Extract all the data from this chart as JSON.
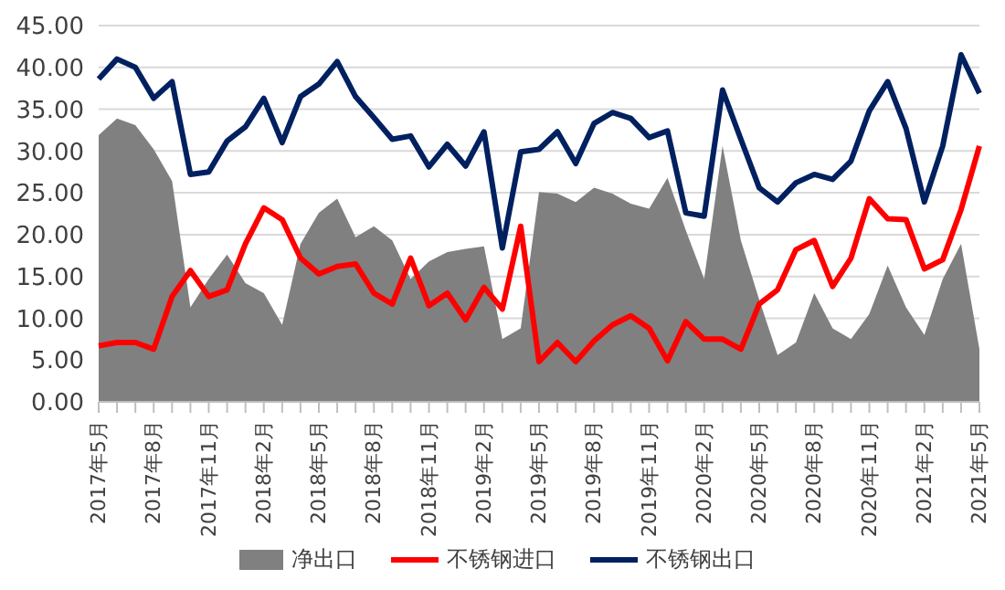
{
  "chart_data": {
    "type": "line",
    "categories": [
      "2017年5月",
      null,
      null,
      "2017年8月",
      null,
      null,
      "2017年11月",
      null,
      null,
      "2018年2月",
      null,
      null,
      "2018年5月",
      null,
      null,
      "2018年8月",
      null,
      null,
      "2018年11月",
      null,
      null,
      "2019年2月",
      null,
      null,
      "2019年5月",
      null,
      null,
      "2019年8月",
      null,
      null,
      "2019年11月",
      null,
      null,
      "2020年2月",
      null,
      null,
      "2020年5月",
      null,
      null,
      "2020年8月",
      null,
      null,
      "2020年11月",
      null,
      null,
      "2021年2月",
      null,
      null,
      "2021年5月"
    ],
    "series": [
      {
        "name": "净出口",
        "type": "area",
        "color": "#808080",
        "values": [
          31.9,
          33.9,
          33.1,
          30.2,
          26.4,
          11.3,
          14.7,
          17.6,
          14.2,
          13,
          9.2,
          18.9,
          22.6,
          24.3,
          19.7,
          21,
          19.3,
          14.7,
          16.8,
          17.9,
          18.3,
          18.6,
          7.5,
          8.8,
          25.1,
          24.9,
          23.9,
          25.6,
          24.9,
          23.7,
          23.1,
          26.8,
          20.5,
          14.7,
          30.6,
          19.3,
          12.2,
          5.6,
          7.1,
          13,
          8.8,
          7.5,
          10.5,
          16.3,
          11.3,
          8,
          14.7,
          18.9,
          6.3
        ]
      },
      {
        "name": "不锈钢进口",
        "color": "#ff0000",
        "values": [
          6.7,
          7.1,
          7.1,
          6.3,
          12.6,
          15.7,
          12.6,
          13.4,
          18.9,
          23.2,
          21.8,
          17.2,
          15.3,
          16.2,
          16.5,
          13,
          11.7,
          17.2,
          11.5,
          13,
          9.8,
          13.7,
          11.1,
          21,
          4.8,
          7.1,
          4.8,
          7.3,
          9.2,
          10.3,
          8.8,
          4.9,
          9.6,
          7.5,
          7.5,
          6.3,
          11.7,
          13.4,
          18.2,
          19.3,
          13.8,
          17.2,
          24.3,
          21.9,
          21.8,
          15.9,
          17,
          23,
          30.6
        ]
      },
      {
        "name": "不锈钢出口",
        "color": "#002060",
        "values": [
          38.6,
          41,
          40,
          36.3,
          38.3,
          27.2,
          27.5,
          31.2,
          32.9,
          36.3,
          31,
          36.5,
          38,
          40.7,
          36.5,
          34,
          31.4,
          31.8,
          28.1,
          30.8,
          28.2,
          32.3,
          18.4,
          29.9,
          30.2,
          32.3,
          28.5,
          33.3,
          34.6,
          33.9,
          31.6,
          32.4,
          22.6,
          22.2,
          37.3,
          31.4,
          25.6,
          23.9,
          26.2,
          27.2,
          26.6,
          28.8,
          34.8,
          38.3,
          32.7,
          23.9,
          30.6,
          41.5,
          36.9
        ]
      }
    ],
    "ylim": [
      0,
      45
    ],
    "yticks": [
      {
        "value": 0,
        "label": "0.00"
      },
      {
        "value": 5,
        "label": "5.00"
      },
      {
        "value": 10,
        "label": "10.00"
      },
      {
        "value": 15,
        "label": "15.00"
      },
      {
        "value": 20,
        "label": "20.00"
      },
      {
        "value": 25,
        "label": "25.00"
      },
      {
        "value": 30,
        "label": "30.00"
      },
      {
        "value": 35,
        "label": "35.00"
      },
      {
        "value": 40,
        "label": "40.00"
      },
      {
        "value": 45,
        "label": "45.00"
      }
    ],
    "grid": "y",
    "legend": "bottom",
    "marker": "none",
    "line_style": "solid"
  }
}
